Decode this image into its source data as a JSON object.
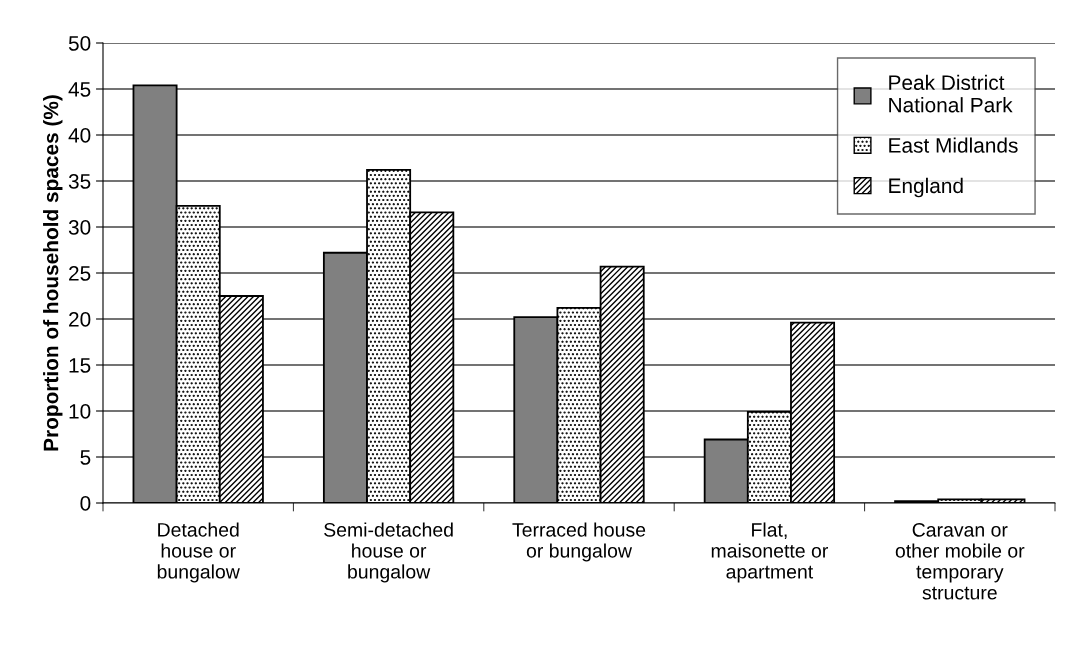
{
  "chart_data": {
    "type": "bar",
    "ylabel": "Proportion of household spaces (%)",
    "categories": [
      "Detached\nhouse or\nbungalow",
      "Semi-detached\nhouse or\nbungalow",
      "Terraced house\nor bungalow",
      "Flat,\nmaisonette or\napartment",
      "Caravan or\nother mobile or\ntemporary\nstructure"
    ],
    "series": [
      {
        "name": "Peak District\nNational Park",
        "color": "#808080",
        "values": [
          45.4,
          27.2,
          20.2,
          6.9,
          0.2
        ]
      },
      {
        "name": "East Midlands",
        "color": "#000000",
        "values": [
          32.3,
          36.2,
          21.2,
          9.9,
          0.4
        ]
      },
      {
        "name": "England",
        "color": "#000000",
        "values": [
          22.5,
          31.6,
          25.7,
          19.6,
          0.4
        ]
      }
    ],
    "ylim": [
      0,
      50
    ],
    "yticks": [
      0,
      5,
      10,
      15,
      20,
      25,
      30,
      35,
      40,
      45,
      50
    ],
    "grid": "y",
    "legend": "top right"
  }
}
